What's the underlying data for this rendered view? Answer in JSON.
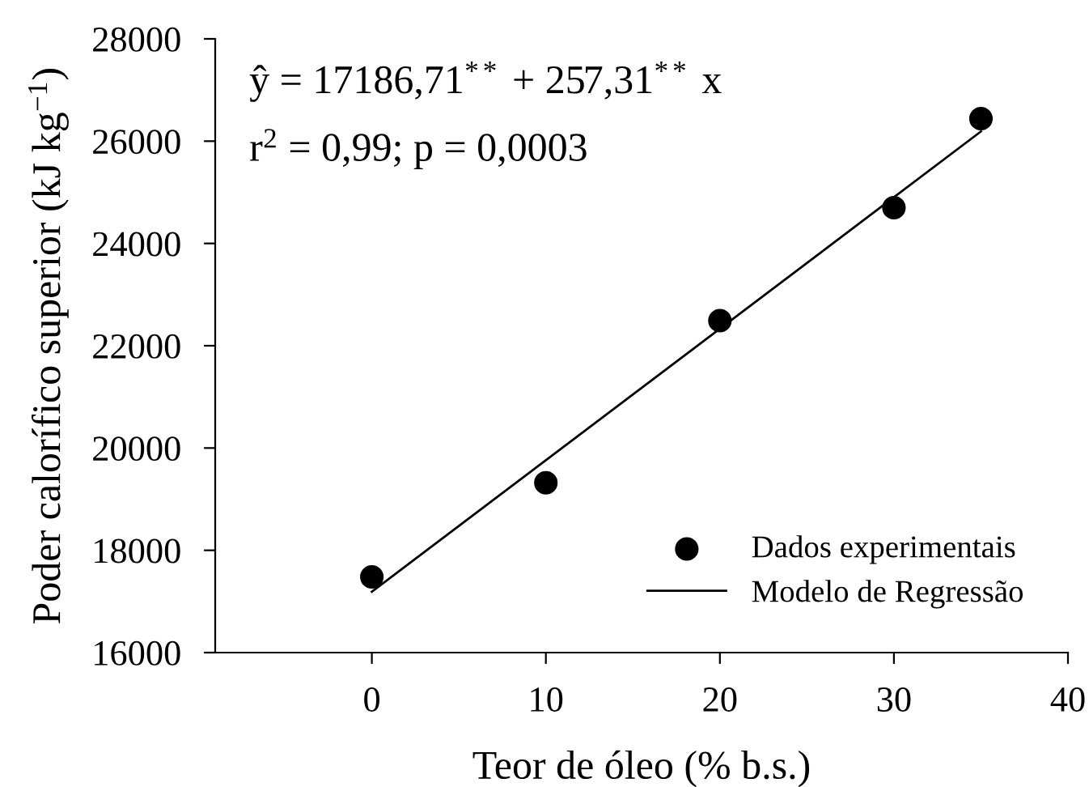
{
  "chart_data": {
    "type": "scatter",
    "xlabel": "Teor de óleo (% b.s.)",
    "ylabel": "Poder calorífico superior (kJ kg$^{−1}$)",
    "xlim": [
      -9,
      40
    ],
    "xticks": [
      0,
      10,
      20,
      30,
      40
    ],
    "ylim": [
      16000,
      28000
    ],
    "yticks": [
      16000,
      18000,
      20000,
      22000,
      24000,
      26000,
      28000
    ],
    "legend": "bottom right",
    "grid": false,
    "annotations": [
      "ŷ = 17186,71$^{**}$ + 257,31$^{**}$ x",
      "r$^{2}$ = 0,99; p = 0,0003"
    ],
    "series": [
      {
        "name": "Dados experimentais",
        "marker": "circle",
        "color": "#000000",
        "x": [
          0,
          10,
          20,
          30,
          35
        ],
        "values": [
          17480,
          19320,
          22490,
          24700,
          26440
        ]
      },
      {
        "name": "Modelo de Regressão",
        "type": "line",
        "color": "#000000",
        "x": [
          0,
          35
        ],
        "values": [
          17190,
          26190
        ]
      }
    ]
  }
}
